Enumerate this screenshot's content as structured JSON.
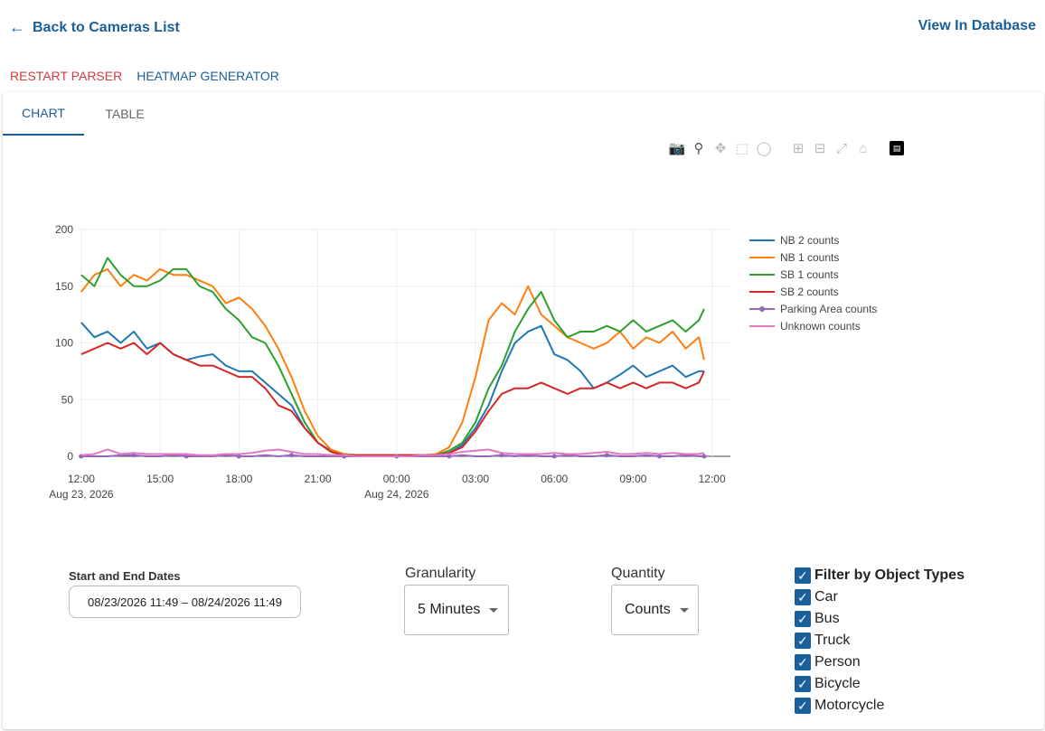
{
  "header": {
    "back_label": "Back to Cameras List",
    "view_db_label": "View In Database"
  },
  "actions": {
    "restart_label": "RESTART PARSER",
    "heatmap_label": "HEATMAP GENERATOR"
  },
  "tabs": [
    {
      "label": "CHART",
      "active": true
    },
    {
      "label": "TABLE",
      "active": false
    }
  ],
  "modebar": [
    "camera-icon",
    "zoom-icon",
    "pan-icon",
    "box-select-icon",
    "lasso-icon",
    "zoom-in-icon",
    "zoom-out-icon",
    "autoscale-icon",
    "reset-axes-icon",
    "plotly-logo-icon"
  ],
  "filters": {
    "dates_label": "Start and End Dates",
    "dates_value": "08/23/2026 11:49 – 08/24/2026 11:49",
    "granularity_label": "Granularity",
    "granularity_value": "5 Minutes",
    "quantity_label": "Quantity",
    "quantity_value": "Counts",
    "object_types_header": "Filter by Object Types",
    "object_types": [
      {
        "label": "Car",
        "checked": true
      },
      {
        "label": "Bus",
        "checked": true
      },
      {
        "label": "Truck",
        "checked": true
      },
      {
        "label": "Person",
        "checked": true
      },
      {
        "label": "Bicycle",
        "checked": true
      },
      {
        "label": "Motorcycle",
        "checked": true
      }
    ]
  },
  "chart_data": {
    "type": "line",
    "x_unit": "hours since Aug 23, 2026 12:00",
    "x_tick_values": [
      0,
      3,
      6,
      9,
      12,
      15,
      18,
      21,
      24
    ],
    "x_tick_labels": [
      "12:00",
      "15:00",
      "18:00",
      "21:00",
      "00:00",
      "03:00",
      "06:00",
      "09:00",
      "12:00"
    ],
    "x_tick_sublabels": [
      "Aug 23, 2026",
      "",
      "",
      "",
      "Aug 24, 2026",
      "",
      "",
      "",
      ""
    ],
    "xlim": [
      -0.1,
      24.7
    ],
    "ylim": [
      0,
      200
    ],
    "y_ticks": [
      0,
      50,
      100,
      150,
      200
    ],
    "grid": true,
    "legend_position": "right",
    "x": [
      0,
      0.5,
      1,
      1.5,
      2,
      2.5,
      3,
      3.5,
      4,
      4.5,
      5,
      5.5,
      6,
      6.5,
      7,
      7.5,
      8,
      8.5,
      9,
      9.5,
      10,
      10.5,
      11,
      11.5,
      12,
      12.5,
      13,
      13.5,
      14,
      14.5,
      15,
      15.5,
      16,
      16.5,
      17,
      17.5,
      18,
      18.5,
      19,
      19.5,
      20,
      20.5,
      21,
      21.5,
      22,
      22.5,
      23,
      23.5,
      23.7
    ],
    "series": [
      {
        "name": "NB 2 counts",
        "color": "#1f77b4",
        "marker": false,
        "values": [
          118,
          105,
          110,
          100,
          110,
          95,
          100,
          90,
          85,
          88,
          90,
          80,
          75,
          75,
          65,
          55,
          45,
          25,
          12,
          5,
          2,
          1,
          1,
          1,
          1,
          1,
          1,
          1,
          3,
          10,
          25,
          45,
          75,
          100,
          110,
          115,
          90,
          85,
          75,
          60,
          65,
          72,
          80,
          70,
          75,
          80,
          70,
          75,
          75
        ]
      },
      {
        "name": "NB 1 counts",
        "color": "#ff7f0e",
        "marker": false,
        "values": [
          145,
          160,
          165,
          150,
          160,
          155,
          165,
          160,
          160,
          155,
          150,
          135,
          140,
          130,
          115,
          95,
          70,
          40,
          18,
          6,
          2,
          1,
          1,
          1,
          1,
          1,
          1,
          2,
          8,
          30,
          70,
          120,
          135,
          125,
          150,
          125,
          115,
          105,
          100,
          95,
          100,
          110,
          95,
          105,
          100,
          110,
          95,
          105,
          85
        ]
      },
      {
        "name": "SB 1 counts",
        "color": "#2ca02c",
        "marker": false,
        "values": [
          160,
          150,
          175,
          160,
          150,
          150,
          155,
          165,
          165,
          150,
          145,
          130,
          120,
          105,
          100,
          80,
          55,
          30,
          12,
          4,
          1,
          1,
          1,
          1,
          1,
          1,
          1,
          1,
          5,
          12,
          30,
          60,
          80,
          110,
          130,
          145,
          120,
          105,
          110,
          110,
          115,
          110,
          120,
          110,
          115,
          120,
          110,
          120,
          130
        ]
      },
      {
        "name": "SB 2 counts",
        "color": "#d62728",
        "marker": false,
        "values": [
          90,
          95,
          100,
          95,
          100,
          90,
          100,
          90,
          85,
          80,
          80,
          75,
          70,
          70,
          60,
          45,
          40,
          25,
          12,
          4,
          1,
          1,
          1,
          1,
          1,
          1,
          1,
          1,
          3,
          8,
          22,
          40,
          55,
          60,
          60,
          65,
          60,
          55,
          60,
          60,
          65,
          60,
          65,
          60,
          65,
          65,
          60,
          65,
          75
        ]
      },
      {
        "name": "Parking Area counts",
        "color": "#9467bd",
        "marker": true,
        "values": [
          0,
          0,
          0,
          1,
          1,
          0,
          0,
          1,
          0,
          0,
          0,
          1,
          0,
          0,
          1,
          0,
          1,
          0,
          0,
          0,
          0,
          0,
          0,
          0,
          0,
          0,
          0,
          0,
          0,
          1,
          0,
          0,
          1,
          0,
          1,
          0,
          0,
          1,
          0,
          0,
          1,
          0,
          0,
          1,
          0,
          0,
          1,
          0,
          0
        ]
      },
      {
        "name": "Unknown counts",
        "color": "#e377c2",
        "marker": false,
        "values": [
          1,
          2,
          6,
          2,
          3,
          2,
          2,
          2,
          2,
          1,
          1,
          2,
          2,
          3,
          5,
          6,
          4,
          2,
          2,
          1,
          1,
          0,
          0,
          0,
          0,
          0,
          1,
          1,
          2,
          4,
          5,
          6,
          3,
          2,
          2,
          2,
          3,
          2,
          2,
          3,
          4,
          2,
          2,
          3,
          2,
          3,
          2,
          2,
          3
        ]
      }
    ]
  }
}
